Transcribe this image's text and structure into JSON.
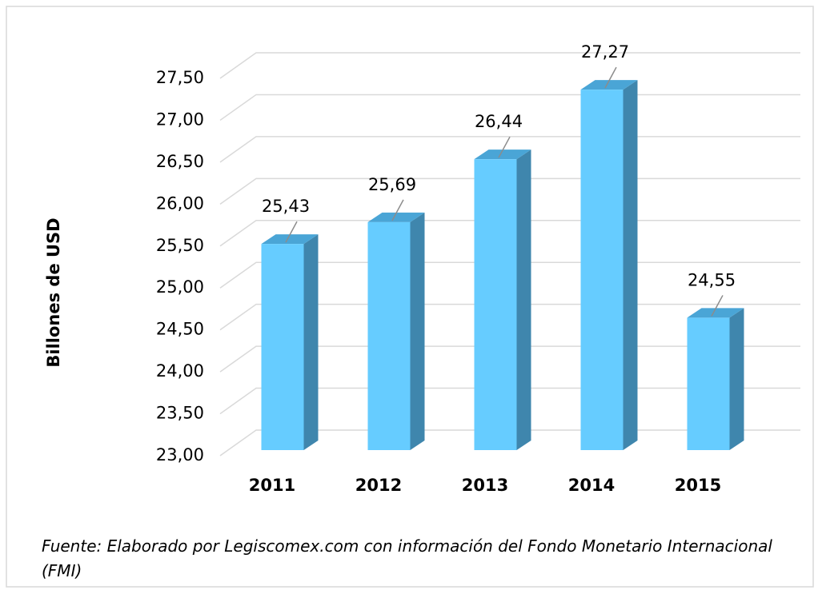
{
  "chart_data": {
    "type": "bar3d",
    "categories": [
      "2011",
      "2012",
      "2013",
      "2014",
      "2015"
    ],
    "values": [
      25.43,
      25.69,
      26.44,
      27.27,
      24.55
    ],
    "value_labels": [
      "25,43",
      "25,69",
      "26,44",
      "27,27",
      "24,55"
    ],
    "color": "#66ccff",
    "ylabel": "Billones de USD",
    "ylim": [
      23,
      27.5
    ],
    "yticks": [
      {
        "value": 23,
        "label": "23,00"
      },
      {
        "value": 23.5,
        "label": "23,50"
      },
      {
        "value": 24,
        "label": "24,00"
      },
      {
        "value": 24.5,
        "label": "24,50"
      },
      {
        "value": 25,
        "label": "25,00"
      },
      {
        "value": 25.5,
        "label": "25,50"
      },
      {
        "value": 26,
        "label": "26,00"
      },
      {
        "value": 26.5,
        "label": "26,50"
      },
      {
        "value": 27,
        "label": "27,00"
      },
      {
        "value": 27.5,
        "label": "27,50"
      }
    ],
    "grid": true,
    "note": "Fuente:  Elaborado por Legiscomex.com con información del Fondo Monetario Internacional (FMI)"
  }
}
